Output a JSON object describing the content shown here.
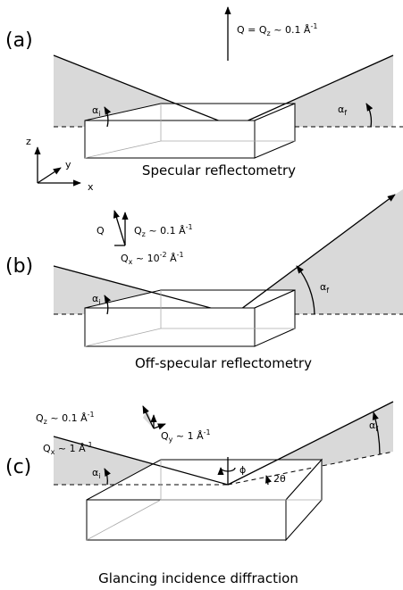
{
  "panels": [
    {
      "label": "(a)",
      "q": [
        "Q = Q",
        "z",
        " ~ 0.1 Å",
        "-1"
      ],
      "alpha_i": [
        "α",
        "i"
      ],
      "alpha_f": [
        "α",
        "f"
      ],
      "axes": [
        "z",
        "y",
        "x"
      ],
      "caption": "Specular reflectometry"
    },
    {
      "label": "(b)",
      "q": "Q",
      "qz": [
        "Q",
        "z",
        " ~ 0.1 Å",
        "-1"
      ],
      "qx": [
        "Q",
        "x",
        " ~ 10",
        "-2",
        " Å",
        "-1"
      ],
      "alpha_i": [
        "α",
        "i"
      ],
      "alpha_f": [
        "α",
        "f"
      ],
      "caption": "Off-specular reflectometry"
    },
    {
      "label": "(c)",
      "qz": [
        "Q",
        "z",
        " ~ 0.1 Å",
        "-1"
      ],
      "qy": [
        "Q",
        "y",
        " ~ 1 Å",
        "-1"
      ],
      "qx": [
        "Q",
        "x",
        " ~ 1 Å",
        "-1"
      ],
      "alpha_i": [
        "α",
        "i"
      ],
      "alpha_f": [
        "α",
        "f"
      ],
      "phi": "ϕ",
      "two_theta": "2θ",
      "caption": "Glancing incidence diffraction"
    }
  ]
}
